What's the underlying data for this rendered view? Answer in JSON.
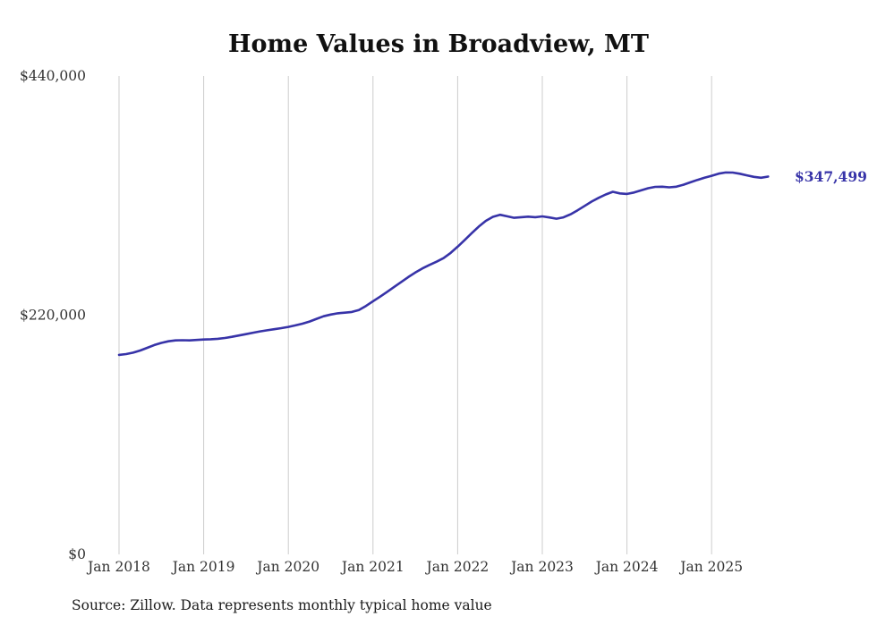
{
  "title": "Home Values in Broadview, MT",
  "source_note": "Source: Zillow. Data represents monthly typical home value",
  "end_label": "$347,499",
  "colors": {
    "line": "#3733a8",
    "end_label": "#3733a8",
    "grid": "#cccccc",
    "axis_text": "#333333",
    "title_text": "#111111"
  },
  "chart_data": {
    "type": "line",
    "title": "Home Values in Broadview, MT",
    "xlabel": "",
    "ylabel": "",
    "grid": "vertical-only",
    "legend": "none",
    "ylim": [
      0,
      440000
    ],
    "y_ticks": [
      0,
      220000,
      440000
    ],
    "y_tick_labels": [
      "$0",
      "$220,000",
      "$440,000"
    ],
    "x_tick_labels": [
      "Jan 2018",
      "Jan 2019",
      "Jan 2020",
      "Jan 2021",
      "Jan 2022",
      "Jan 2023",
      "Jan 2024",
      "Jan 2025"
    ],
    "x_start": "2018-01",
    "x_step_months": 1,
    "end_value": 347499,
    "values": [
      183500,
      184200,
      185500,
      187500,
      190000,
      192500,
      194500,
      196000,
      196800,
      197000,
      196800,
      197200,
      197600,
      197900,
      198300,
      199000,
      200100,
      201300,
      202600,
      203900,
      205100,
      206100,
      207100,
      208100,
      209200,
      210600,
      212200,
      214200,
      216600,
      219000,
      220600,
      221700,
      222300,
      223000,
      224800,
      228500,
      232800,
      237000,
      241500,
      246000,
      250500,
      255000,
      259200,
      263000,
      266200,
      269200,
      272500,
      277200,
      283000,
      289200,
      295500,
      301500,
      306800,
      310500,
      312400,
      311000,
      309600,
      310100,
      310600,
      310100,
      310900,
      309900,
      308700,
      310000,
      312800,
      316500,
      320500,
      324500,
      328000,
      331000,
      333500,
      332000,
      331500,
      332800,
      334800,
      336800,
      338000,
      338200,
      337600,
      338200,
      340000,
      342200,
      344400,
      346400,
      348200,
      350200,
      351300,
      351200,
      350100,
      348600,
      347200,
      346400,
      347499
    ]
  }
}
